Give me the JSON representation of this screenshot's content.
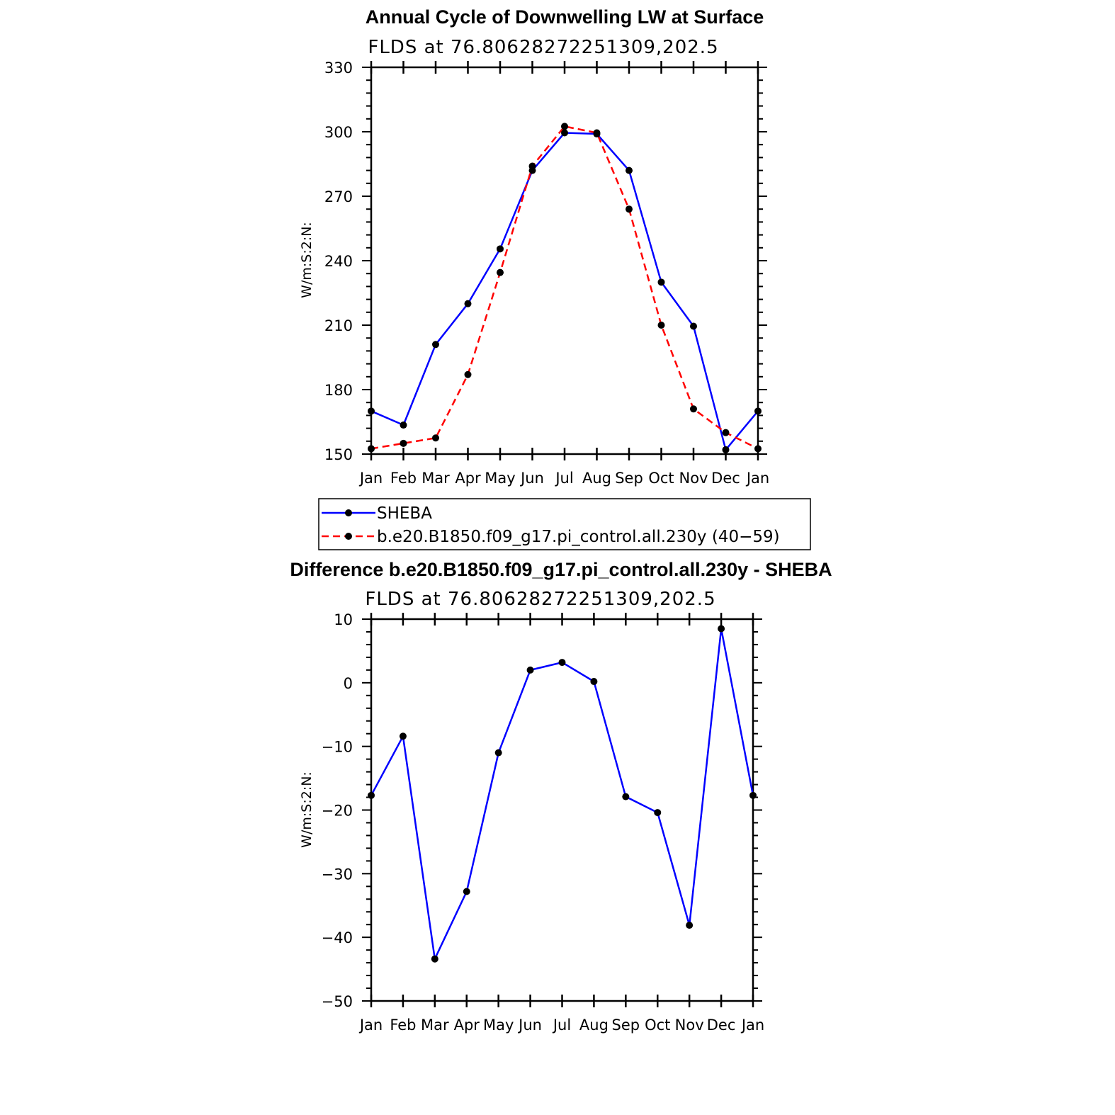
{
  "chart_data": [
    {
      "type": "line",
      "title": "Annual Cycle of Downwelling LW at Surface",
      "subtitle": "FLDS at 76.80628272251309,202.5",
      "ylabel": "W/m:S:2:N:",
      "xlabel": "",
      "categories": [
        "Jan",
        "Feb",
        "Mar",
        "Apr",
        "May",
        "Jun",
        "Jul",
        "Aug",
        "Sep",
        "Oct",
        "Nov",
        "Dec",
        "Jan"
      ],
      "ylim": [
        150,
        330
      ],
      "yticks": [
        150,
        180,
        210,
        240,
        270,
        300,
        330
      ],
      "grid": false,
      "legend": "below",
      "series": [
        {
          "name": "SHEBA",
          "color": "#0000ff",
          "style": "solid",
          "values": [
            170,
            163.5,
            201,
            220,
            245.5,
            282,
            299.5,
            299,
            282,
            230,
            209.5,
            152,
            170
          ]
        },
        {
          "name": "b.e20.B1850.f09_g17.pi_control.all.230y (40−59)",
          "color": "#ff0000",
          "style": "dashed",
          "values": [
            152.5,
            155,
            157.5,
            187,
            234.5,
            284,
            302.5,
            299.5,
            264,
            210,
            171,
            160,
            152.5
          ]
        }
      ]
    },
    {
      "type": "line",
      "title": "Difference b.e20.B1850.f09_g17.pi_control.all.230y - SHEBA",
      "subtitle": "FLDS at 76.80628272251309,202.5",
      "ylabel": "W/m:S:2:N:",
      "xlabel": "",
      "categories": [
        "Jan",
        "Feb",
        "Mar",
        "Apr",
        "May",
        "Jun",
        "Jul",
        "Aug",
        "Sep",
        "Oct",
        "Nov",
        "Dec",
        "Jan"
      ],
      "ylim": [
        -50,
        10
      ],
      "yticks": [
        -50,
        -40,
        -30,
        -20,
        -10,
        0,
        10
      ],
      "grid": false,
      "series": [
        {
          "name": "",
          "color": "#0000ff",
          "style": "solid",
          "values": [
            -17.7,
            -8.4,
            -43.4,
            -32.8,
            -11,
            2,
            3.2,
            0.2,
            -17.9,
            -20.4,
            -38.1,
            8.5,
            -17.7
          ]
        }
      ]
    }
  ]
}
